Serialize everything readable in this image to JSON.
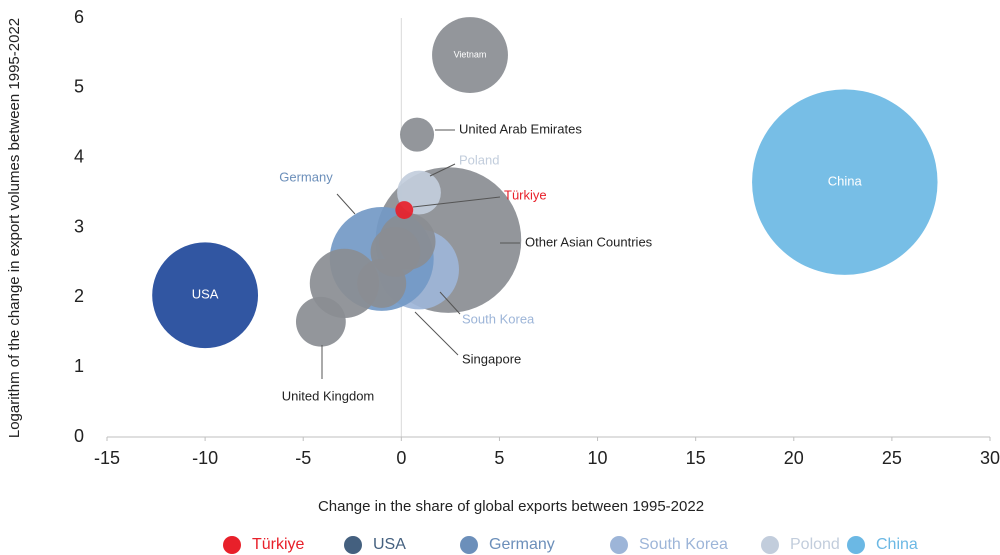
{
  "chart_data": {
    "type": "scatter",
    "x_label": "Change in the share of global exports between 1995-2022",
    "y_label": "Logarithm of the change in export volumes between 1995-2022",
    "xlim": [
      -15,
      30
    ],
    "xticks": [
      -15,
      -10,
      -5,
      0,
      5,
      10,
      15,
      20,
      25,
      30
    ],
    "ylim": [
      0,
      6
    ],
    "yticks": [
      0,
      1,
      2,
      3,
      4,
      5,
      6
    ],
    "points": [
      {
        "name": "Other Asian Countries",
        "x": 2.4,
        "y": 2.82,
        "size": 53,
        "color": "#8a8d92"
      },
      {
        "name": "South Korea",
        "x": 0.9,
        "y": 2.4,
        "size": 16,
        "color": "#9db5d8"
      },
      {
        "name": "Germany",
        "x": -1,
        "y": 2.55,
        "size": 27,
        "color": "#7399c6"
      },
      {
        "name": null,
        "x": -2.9,
        "y": 2.2,
        "size": 12,
        "color": "#8a8d92"
      },
      {
        "name": null,
        "x": 0.3,
        "y": 2.8,
        "size": 8,
        "color": "#8a8d92"
      },
      {
        "name": null,
        "x": -1,
        "y": 2.2,
        "size": 6,
        "color": "#8a8d92"
      },
      {
        "name": "Singapore",
        "x": -0.3,
        "y": 2.65,
        "size": 6.2,
        "color": "#8a8d92"
      },
      {
        "name": "United Kingdom",
        "x": -4.1,
        "y": 1.65,
        "size": 6.2,
        "color": "#8a8d92"
      },
      {
        "name": "USA",
        "x": -10,
        "y": 2.03,
        "size": 28,
        "color": "#20489a"
      },
      {
        "name": "China",
        "x": 22.6,
        "y": 3.65,
        "size": 86,
        "color": "#6bb8e4"
      },
      {
        "name": "Vietnam",
        "x": 3.5,
        "y": 5.47,
        "size": 14.4,
        "color": "#8a8d92"
      },
      {
        "name": "United Arab Emirates",
        "x": 0.8,
        "y": 4.33,
        "size": 2.9,
        "color": "#8a8d92"
      },
      {
        "name": "Poland",
        "x": 0.9,
        "y": 3.5,
        "size": 4.8,
        "color": "#c2cddc"
      },
      {
        "name": "Türkiye",
        "x": 0.15,
        "y": 3.25,
        "size": 0.8,
        "color": "#e8202a"
      }
    ],
    "legend": [
      {
        "name": "Türkiye",
        "color": "#e8202a"
      },
      {
        "name": "USA",
        "color": "#44607f"
      },
      {
        "name": "Germany",
        "color": "#6c8fba"
      },
      {
        "name": "South Korea",
        "color": "#9db5d8"
      },
      {
        "name": "Polond",
        "color": "#c2cddc"
      },
      {
        "name": "China",
        "color": "#6bb8e4"
      }
    ]
  }
}
